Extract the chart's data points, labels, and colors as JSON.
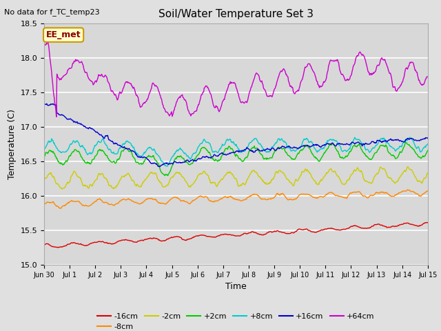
{
  "title": "Soil/Water Temperature Set 3",
  "xlabel": "Time",
  "ylabel": "Temperature (C)",
  "ylim": [
    15.0,
    18.5
  ],
  "annotation_text": "No data for f_TC_temp23",
  "box_label": "EE_met",
  "series_labels": [
    "-16cm",
    "-8cm",
    "-2cm",
    "+2cm",
    "+8cm",
    "+16cm",
    "+64cm"
  ],
  "series_colors": [
    "#dd0000",
    "#ff8800",
    "#cccc00",
    "#00cc00",
    "#00cccc",
    "#0000cc",
    "#cc00cc"
  ],
  "xtick_labels": [
    "Jun 30",
    "Jul 1",
    "Jul 2",
    "Jul 3",
    "Jul 4",
    "Jul 5",
    "Jul 6",
    "Jul 7",
    "Jul 8",
    "Jul 9",
    "Jul 10",
    "Jul 11",
    "Jul 12",
    "Jul 13",
    "Jul 14",
    "Jul 15"
  ],
  "background_color": "#e0e0e0",
  "plot_bg_color": "#d8d8d8",
  "grid_color": "#ffffff",
  "n_points": 720
}
